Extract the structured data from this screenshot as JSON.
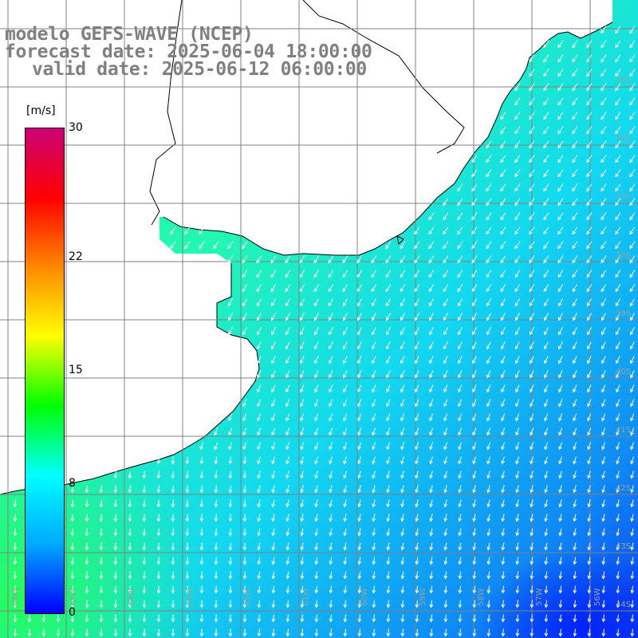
{
  "title": {
    "line1": "modelo GEFS-WAVE (NCEP)",
    "line2": "forecast date: 2025-06-04 18:00:00",
    "line3": "valid date: 2025-06-12 06:00:00"
  },
  "colorbar": {
    "units": "[m/s]",
    "min": 0,
    "max": 30,
    "ticks": [
      {
        "value": 30,
        "label": "30"
      },
      {
        "value": 22,
        "label": "22"
      },
      {
        "value": 15,
        "label": "15"
      },
      {
        "value": 8,
        "label": "8"
      },
      {
        "value": 0,
        "label": "0"
      }
    ],
    "stops": [
      "#0000ff",
      "#00aaff",
      "#00ffff",
      "#00ff00",
      "#ffff00",
      "#ff8800",
      "#ff0000",
      "#cc0077"
    ]
  },
  "map": {
    "lon_range": [
      -66,
      -55
    ],
    "lat_range": [
      -45,
      -34
    ],
    "lon_labels": [
      "66W",
      "65W",
      "64W",
      "63W",
      "62W",
      "61W",
      "60W",
      "59W",
      "58W",
      "57W",
      "56W"
    ],
    "lat_labels": [
      "35S",
      "36S",
      "37S",
      "38S",
      "39S",
      "40S",
      "41S",
      "42S",
      "43S",
      "44S"
    ],
    "land_color": "#ffffff",
    "coast_color": "#000000",
    "grid_color": "#808080",
    "arrow_color": "#ffffff",
    "wind_direction": "from north-east"
  }
}
